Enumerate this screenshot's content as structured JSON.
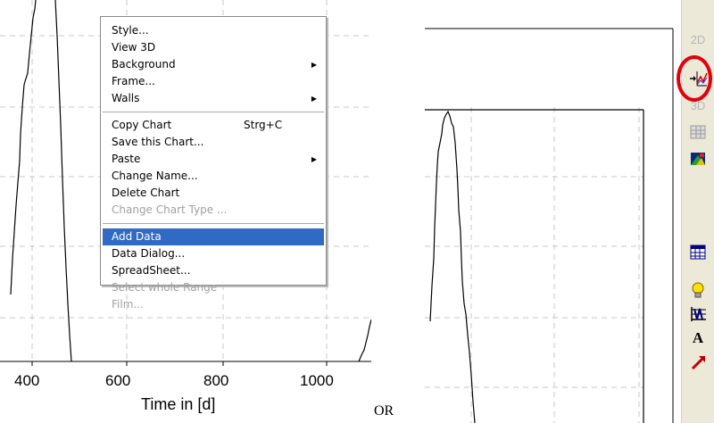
{
  "left_chart": {
    "x_ticks": [
      "400",
      "600",
      "800",
      "1000"
    ],
    "x_axis_title": "Time in [d]"
  },
  "context_menu": {
    "items": [
      {
        "label": "Style...",
        "state": "enabled"
      },
      {
        "label": "View 3D",
        "state": "enabled"
      },
      {
        "label": "Background",
        "state": "enabled",
        "submenu": true
      },
      {
        "label": "Frame...",
        "state": "enabled"
      },
      {
        "label": "Walls",
        "state": "enabled",
        "submenu": true
      },
      {
        "label": "Copy Chart",
        "state": "enabled",
        "shortcut": "Strg+C"
      },
      {
        "label": "Save this Chart...",
        "state": "enabled"
      },
      {
        "label": "Paste",
        "state": "enabled",
        "submenu": true
      },
      {
        "label": "Change Name...",
        "state": "enabled"
      },
      {
        "label": "Delete Chart",
        "state": "enabled"
      },
      {
        "label": "Change Chart Type ...",
        "state": "disabled"
      },
      {
        "label": "Add Data",
        "state": "highlighted"
      },
      {
        "label": "Data Dialog...",
        "state": "enabled"
      },
      {
        "label": "SpreadSheet...",
        "state": "enabled"
      },
      {
        "label": "Select whole Range",
        "state": "disabled"
      },
      {
        "label": "Film...",
        "state": "disabled"
      }
    ]
  },
  "separator_text": "OR",
  "toolbar": {
    "label_2d": "2D",
    "label_3d": "3D",
    "text_tool_label": "A",
    "icons": [
      "2d-mode",
      "add-data",
      "3d-mode",
      "data-table",
      "color-palette",
      "spreadsheet",
      "lightbulb",
      "axis-grid",
      "text-tool",
      "pointer-arrow"
    ]
  },
  "colors": {
    "menu_highlight": "#316ac5",
    "highlight_ring": "#e0000e",
    "toolbar_background": "#ece9d8",
    "disabled_text": "#a0a0a0"
  }
}
